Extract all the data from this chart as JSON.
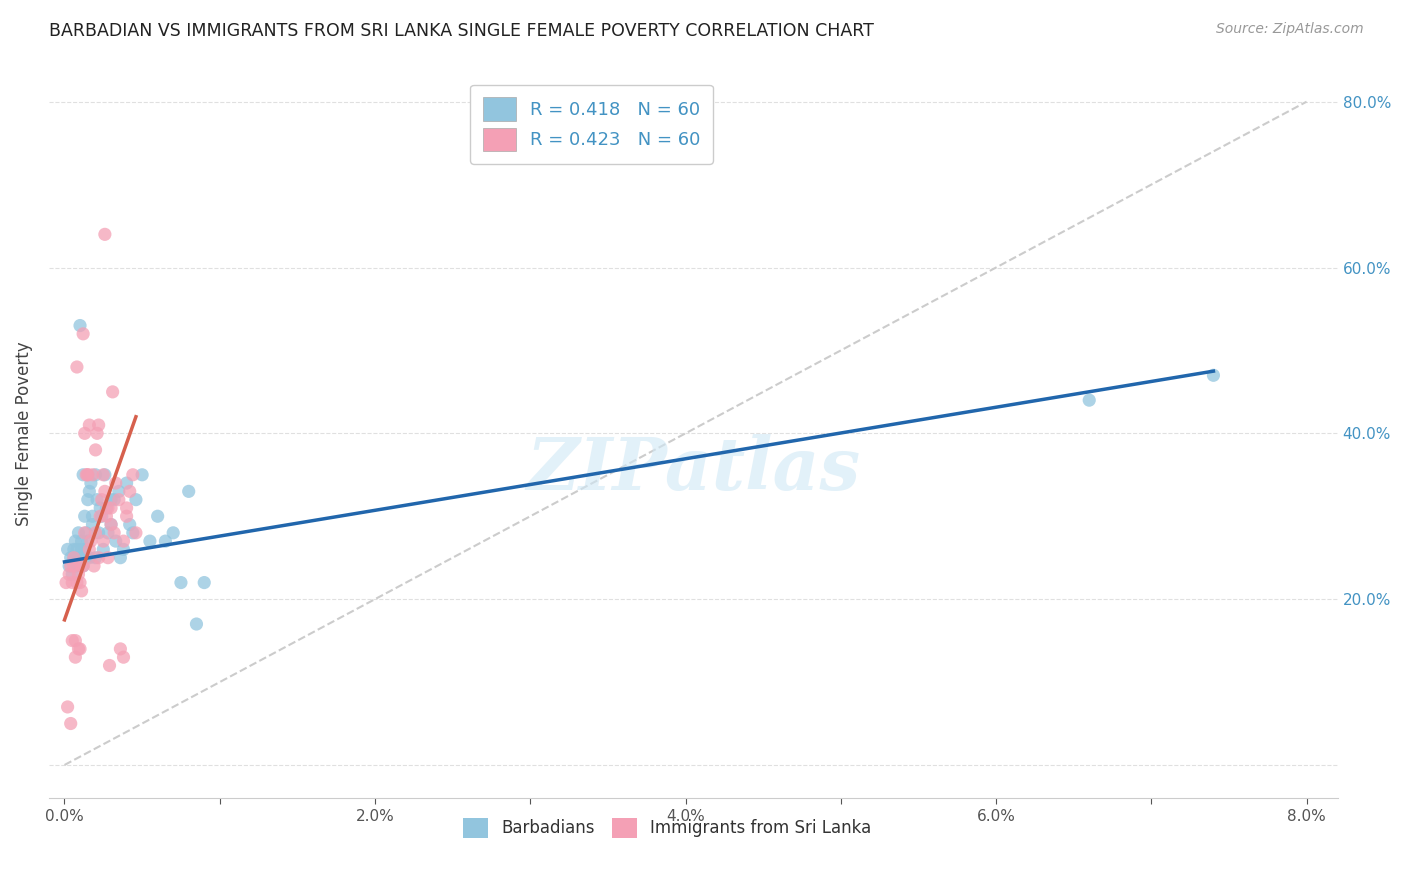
{
  "title": "BARBADIAN VS IMMIGRANTS FROM SRI LANKA SINGLE FEMALE POVERTY CORRELATION CHART",
  "source": "Source: ZipAtlas.com",
  "ylabel": "Single Female Poverty",
  "xlim": [
    -0.001,
    0.082
  ],
  "ylim": [
    -0.04,
    0.84
  ],
  "color_blue": "#92c5de",
  "color_pink": "#f4a0b5",
  "color_blue_line": "#2166ac",
  "color_pink_line": "#d6604d",
  "color_diag": "#cccccc",
  "background_color": "#ffffff",
  "grid_color": "#e0e0e0",
  "barbadian_x": [
    0.0002,
    0.0003,
    0.0004,
    0.0005,
    0.0006,
    0.0006,
    0.0007,
    0.0007,
    0.0008,
    0.0008,
    0.0009,
    0.001,
    0.001,
    0.0011,
    0.0011,
    0.0012,
    0.0012,
    0.0013,
    0.0013,
    0.0014,
    0.0014,
    0.0015,
    0.0015,
    0.0016,
    0.0016,
    0.0017,
    0.0018,
    0.0018,
    0.002,
    0.002,
    0.0021,
    0.0022,
    0.0023,
    0.0024,
    0.0025,
    0.0026,
    0.0027,
    0.0028,
    0.003,
    0.003,
    0.0032,
    0.0033,
    0.0035,
    0.0036,
    0.0038,
    0.004,
    0.0042,
    0.0044,
    0.0046,
    0.005,
    0.0055,
    0.006,
    0.0065,
    0.007,
    0.0075,
    0.008,
    0.0085,
    0.009,
    0.066,
    0.074
  ],
  "barbadian_y": [
    0.26,
    0.24,
    0.25,
    0.23,
    0.26,
    0.25,
    0.25,
    0.27,
    0.24,
    0.26,
    0.28,
    0.25,
    0.53,
    0.26,
    0.27,
    0.24,
    0.35,
    0.26,
    0.3,
    0.25,
    0.28,
    0.27,
    0.32,
    0.25,
    0.33,
    0.34,
    0.29,
    0.3,
    0.25,
    0.35,
    0.32,
    0.28,
    0.31,
    0.3,
    0.26,
    0.35,
    0.31,
    0.28,
    0.32,
    0.29,
    0.32,
    0.27,
    0.33,
    0.25,
    0.26,
    0.34,
    0.29,
    0.28,
    0.32,
    0.35,
    0.27,
    0.3,
    0.27,
    0.28,
    0.22,
    0.33,
    0.17,
    0.22,
    0.44,
    0.47
  ],
  "srilanka_x": [
    0.0001,
    0.0002,
    0.0003,
    0.0004,
    0.0004,
    0.0005,
    0.0005,
    0.0006,
    0.0006,
    0.0007,
    0.0007,
    0.0008,
    0.0008,
    0.0009,
    0.0009,
    0.001,
    0.001,
    0.0011,
    0.0011,
    0.0012,
    0.0012,
    0.0013,
    0.0013,
    0.0014,
    0.0015,
    0.0015,
    0.0016,
    0.0016,
    0.0017,
    0.0018,
    0.0019,
    0.002,
    0.002,
    0.0021,
    0.0022,
    0.0022,
    0.0023,
    0.0024,
    0.0025,
    0.0025,
    0.0026,
    0.0026,
    0.0027,
    0.0028,
    0.0028,
    0.0029,
    0.003,
    0.003,
    0.0031,
    0.0032,
    0.0033,
    0.0035,
    0.0036,
    0.0038,
    0.0038,
    0.004,
    0.004,
    0.0042,
    0.0044,
    0.0046
  ],
  "srilanka_y": [
    0.22,
    0.07,
    0.23,
    0.05,
    0.24,
    0.15,
    0.22,
    0.25,
    0.24,
    0.15,
    0.13,
    0.22,
    0.48,
    0.23,
    0.14,
    0.22,
    0.14,
    0.24,
    0.21,
    0.52,
    0.24,
    0.28,
    0.4,
    0.35,
    0.35,
    0.35,
    0.26,
    0.41,
    0.27,
    0.35,
    0.24,
    0.38,
    0.28,
    0.4,
    0.25,
    0.41,
    0.3,
    0.32,
    0.35,
    0.27,
    0.33,
    0.64,
    0.3,
    0.31,
    0.25,
    0.12,
    0.31,
    0.29,
    0.45,
    0.28,
    0.34,
    0.32,
    0.14,
    0.27,
    0.13,
    0.3,
    0.31,
    0.33,
    0.35,
    0.28
  ],
  "blue_line_x": [
    0.0,
    0.074
  ],
  "blue_line_y": [
    0.245,
    0.475
  ],
  "pink_line_x": [
    0.0,
    0.0046
  ],
  "pink_line_y": [
    0.175,
    0.42
  ]
}
